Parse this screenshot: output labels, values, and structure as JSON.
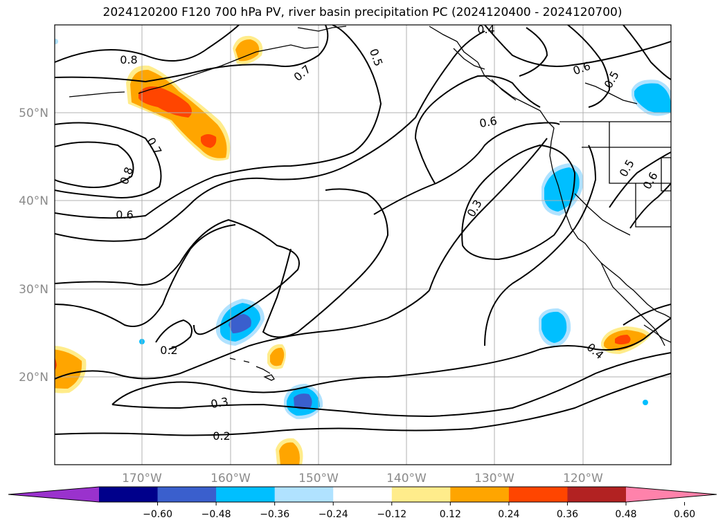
{
  "title": "2024120200 F120 700 hPa PV, river basin precipitation PC (2024120400 - 2024120700)",
  "axes": {
    "lat_labels": [
      "50°N",
      "40°N",
      "30°N",
      "20°N"
    ],
    "lon_labels": [
      "170°W",
      "160°W",
      "150°W",
      "140°W",
      "130°W",
      "120°W"
    ]
  },
  "contour_labels": [
    "0.8",
    "0.7",
    "0.7",
    "0.8",
    "0.6",
    "0.5",
    "0.4",
    "0.6",
    "0.5",
    "0.6",
    "0.3",
    "0.5",
    "0.6",
    "0.2",
    "0.3",
    "0.2",
    "0.4"
  ],
  "colorbar": {
    "ticks": [
      "−0.60",
      "−0.48",
      "−0.36",
      "−0.24",
      "−0.12",
      "0.12",
      "0.24",
      "0.36",
      "0.48",
      "0.60"
    ],
    "colors": [
      "#9a32cd",
      "#00008b",
      "#3a5fcd",
      "#00bfff",
      "#b0e2ff",
      "#ffffff",
      "#ffec8b",
      "#ffa500",
      "#ff4500",
      "#b22222",
      "#ff82ab"
    ]
  },
  "anomaly_colors": {
    "positive_weak": "#ffec8b",
    "positive_mid": "#ffa500",
    "positive_strong": "#ff4500",
    "negative_weak": "#b0e2ff",
    "negative_mid": "#00bfff",
    "negative_strong": "#3a5fcd"
  }
}
